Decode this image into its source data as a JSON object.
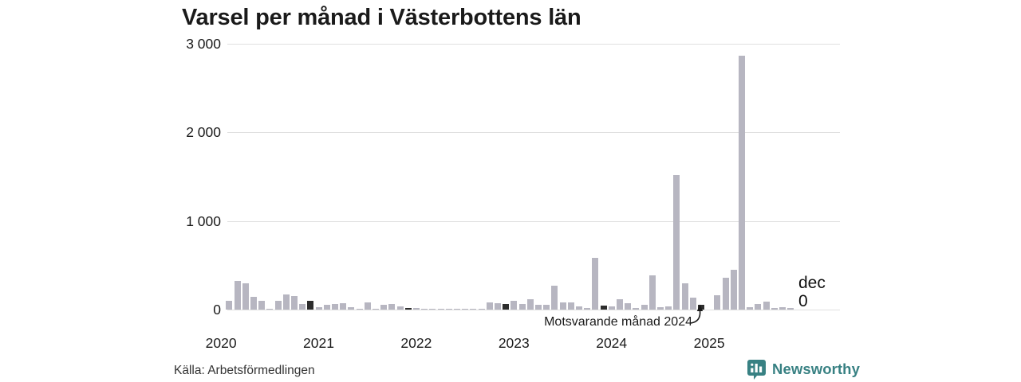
{
  "title": "Varsel per månad i Västerbottens län",
  "source": "Källa: Arbetsförmedlingen",
  "logo": {
    "text": "Newsworthy"
  },
  "annotation": {
    "text": "Motsvarande månad 2024"
  },
  "latest": {
    "month": "dec",
    "value": "0"
  },
  "colors": {
    "bar": "#b7b6c1",
    "bar_highlight": "#2d2d2d",
    "grid": "#e0e0e0",
    "text": "#1a1a1a",
    "source_text": "#333333",
    "logo_teal": "#388183"
  },
  "chart_data": {
    "type": "bar",
    "title": "Varsel per månad i Västerbottens län",
    "xlabel": "",
    "ylabel": "",
    "x_start": "2020-01",
    "frequency": "monthly",
    "x_year_labels": [
      "2020",
      "2021",
      "2022",
      "2023",
      "2024",
      "2025"
    ],
    "ylim": [
      0,
      3000
    ],
    "grid": true,
    "yticks": [
      {
        "value": 0,
        "label": "0"
      },
      {
        "value": 1000,
        "label": "1 000"
      },
      {
        "value": 2000,
        "label": "2 000"
      },
      {
        "value": 3000,
        "label": "3 000"
      }
    ],
    "highlight_rule": "december-bars-dark",
    "annotated_bar": {
      "month": "2024-12",
      "label": "Motsvarande månad 2024"
    },
    "latest_bar": {
      "month": "2025-12",
      "month_label": "dec",
      "value": 0
    },
    "series": [
      {
        "name": "Varsel per månad",
        "values": [
          0,
          100,
          320,
          300,
          145,
          100,
          10,
          100,
          175,
          150,
          60,
          100,
          30,
          55,
          65,
          75,
          25,
          10,
          85,
          5,
          50,
          60,
          40,
          20,
          18,
          5,
          12,
          5,
          3,
          12,
          10,
          3,
          12,
          78,
          70,
          60,
          100,
          60,
          115,
          55,
          50,
          270,
          80,
          80,
          40,
          20,
          585,
          48,
          40,
          115,
          75,
          20,
          55,
          385,
          25,
          40,
          1515,
          295,
          135,
          55,
          0,
          165,
          355,
          445,
          2865,
          25,
          60,
          90,
          15,
          25,
          18,
          0
        ]
      }
    ]
  }
}
